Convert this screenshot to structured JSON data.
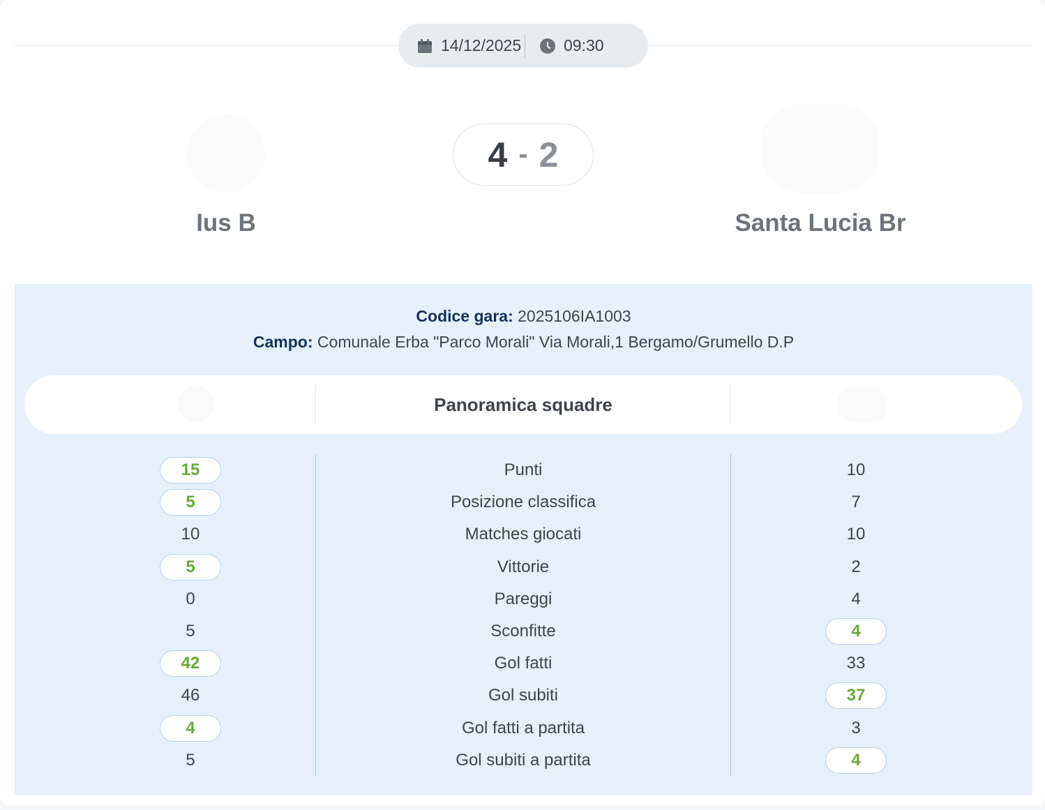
{
  "match": {
    "date": "14/12/2025",
    "time": "09:30",
    "score_home": "4",
    "score_separator": "-",
    "score_away": "2",
    "home_team": "Ius B",
    "away_team": "Santa Lucia Br"
  },
  "info": {
    "code_label": "Codice gara:",
    "code_value": "2025106IA1003",
    "field_label": "Campo:",
    "field_value": "Comunale Erba \"Parco Morali\" Via Morali,1 Bergamo/Grumello D.P"
  },
  "overview": {
    "title": "Panoramica squadre"
  },
  "highlight_color": "#68a83a",
  "stats": [
    {
      "label": "Punti",
      "home": "15",
      "away": "10",
      "best": "home"
    },
    {
      "label": "Posizione classifica",
      "home": "5",
      "away": "7",
      "best": "home"
    },
    {
      "label": "Matches giocati",
      "home": "10",
      "away": "10",
      "best": "none"
    },
    {
      "label": "Vittorie",
      "home": "5",
      "away": "2",
      "best": "home"
    },
    {
      "label": "Pareggi",
      "home": "0",
      "away": "4",
      "best": "none"
    },
    {
      "label": "Sconfitte",
      "home": "5",
      "away": "4",
      "best": "away"
    },
    {
      "label": "Gol fatti",
      "home": "42",
      "away": "33",
      "best": "home"
    },
    {
      "label": "Gol subiti",
      "home": "46",
      "away": "37",
      "best": "away"
    },
    {
      "label": "Gol fatti a partita",
      "home": "4",
      "away": "3",
      "best": "home"
    },
    {
      "label": "Gol subiti a partita",
      "home": "5",
      "away": "4",
      "best": "away"
    }
  ]
}
